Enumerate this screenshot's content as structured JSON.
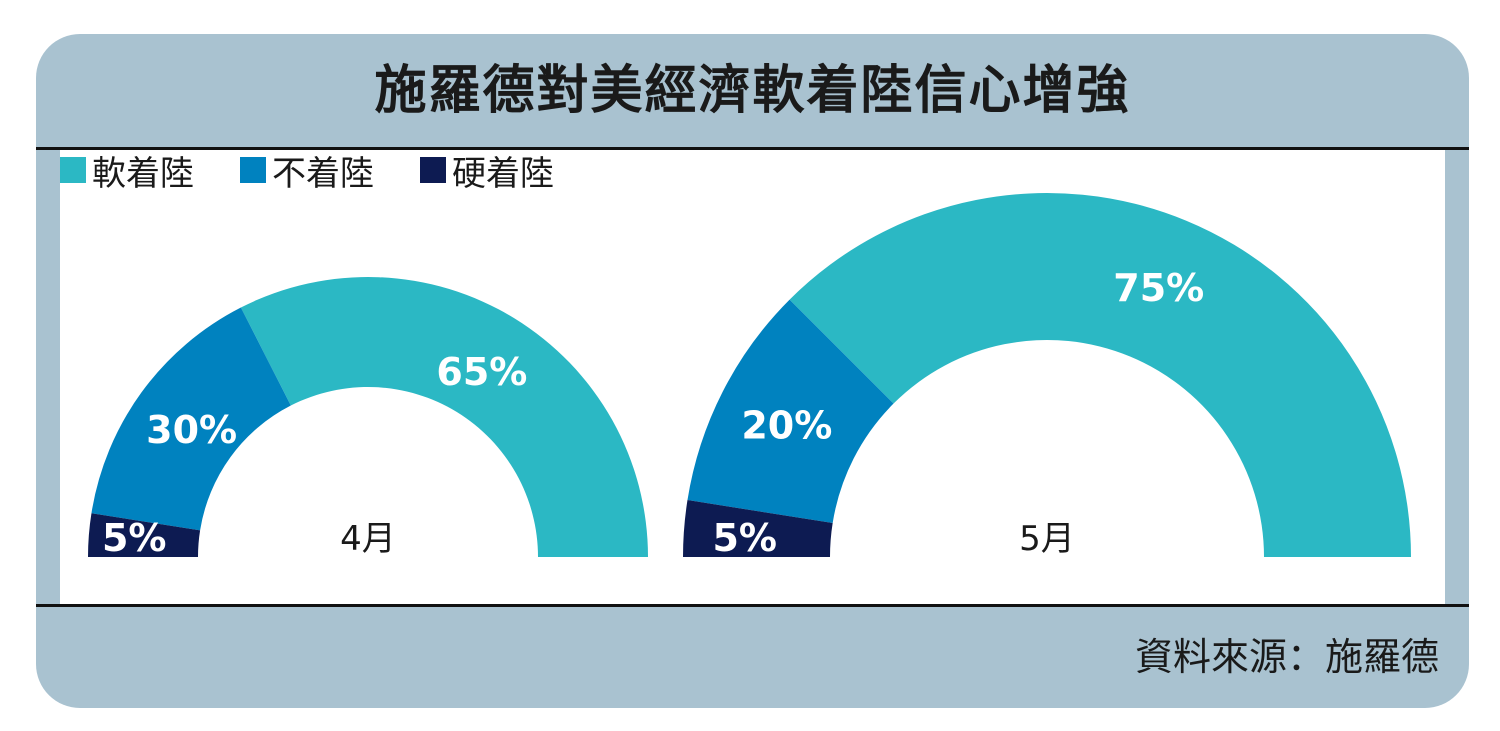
{
  "title": "施羅德對美經濟軟着陸信心增強",
  "source": "資料來源：施羅德",
  "legend": [
    {
      "label": "軟着陸",
      "color": "#2bb8c4"
    },
    {
      "label": "不着陸",
      "color": "#0082bf"
    },
    {
      "label": "硬着陸",
      "color": "#0d1b52"
    }
  ],
  "chart_data": [
    {
      "type": "pie",
      "shape": "half-donut",
      "center_label": "4月",
      "categories": [
        "軟着陸",
        "不着陸",
        "硬着陸"
      ],
      "values": [
        65,
        30,
        5
      ],
      "labels": [
        "65%",
        "30%",
        "5%"
      ],
      "colors": [
        "#2bb8c4",
        "#0082bf",
        "#0d1b52"
      ]
    },
    {
      "type": "pie",
      "shape": "half-donut",
      "center_label": "5月",
      "categories": [
        "軟着陸",
        "不着陸",
        "硬着陸"
      ],
      "values": [
        75,
        20,
        5
      ],
      "labels": [
        "75%",
        "20%",
        "5%"
      ],
      "colors": [
        "#2bb8c4",
        "#0082bf",
        "#0d1b52"
      ]
    }
  ]
}
